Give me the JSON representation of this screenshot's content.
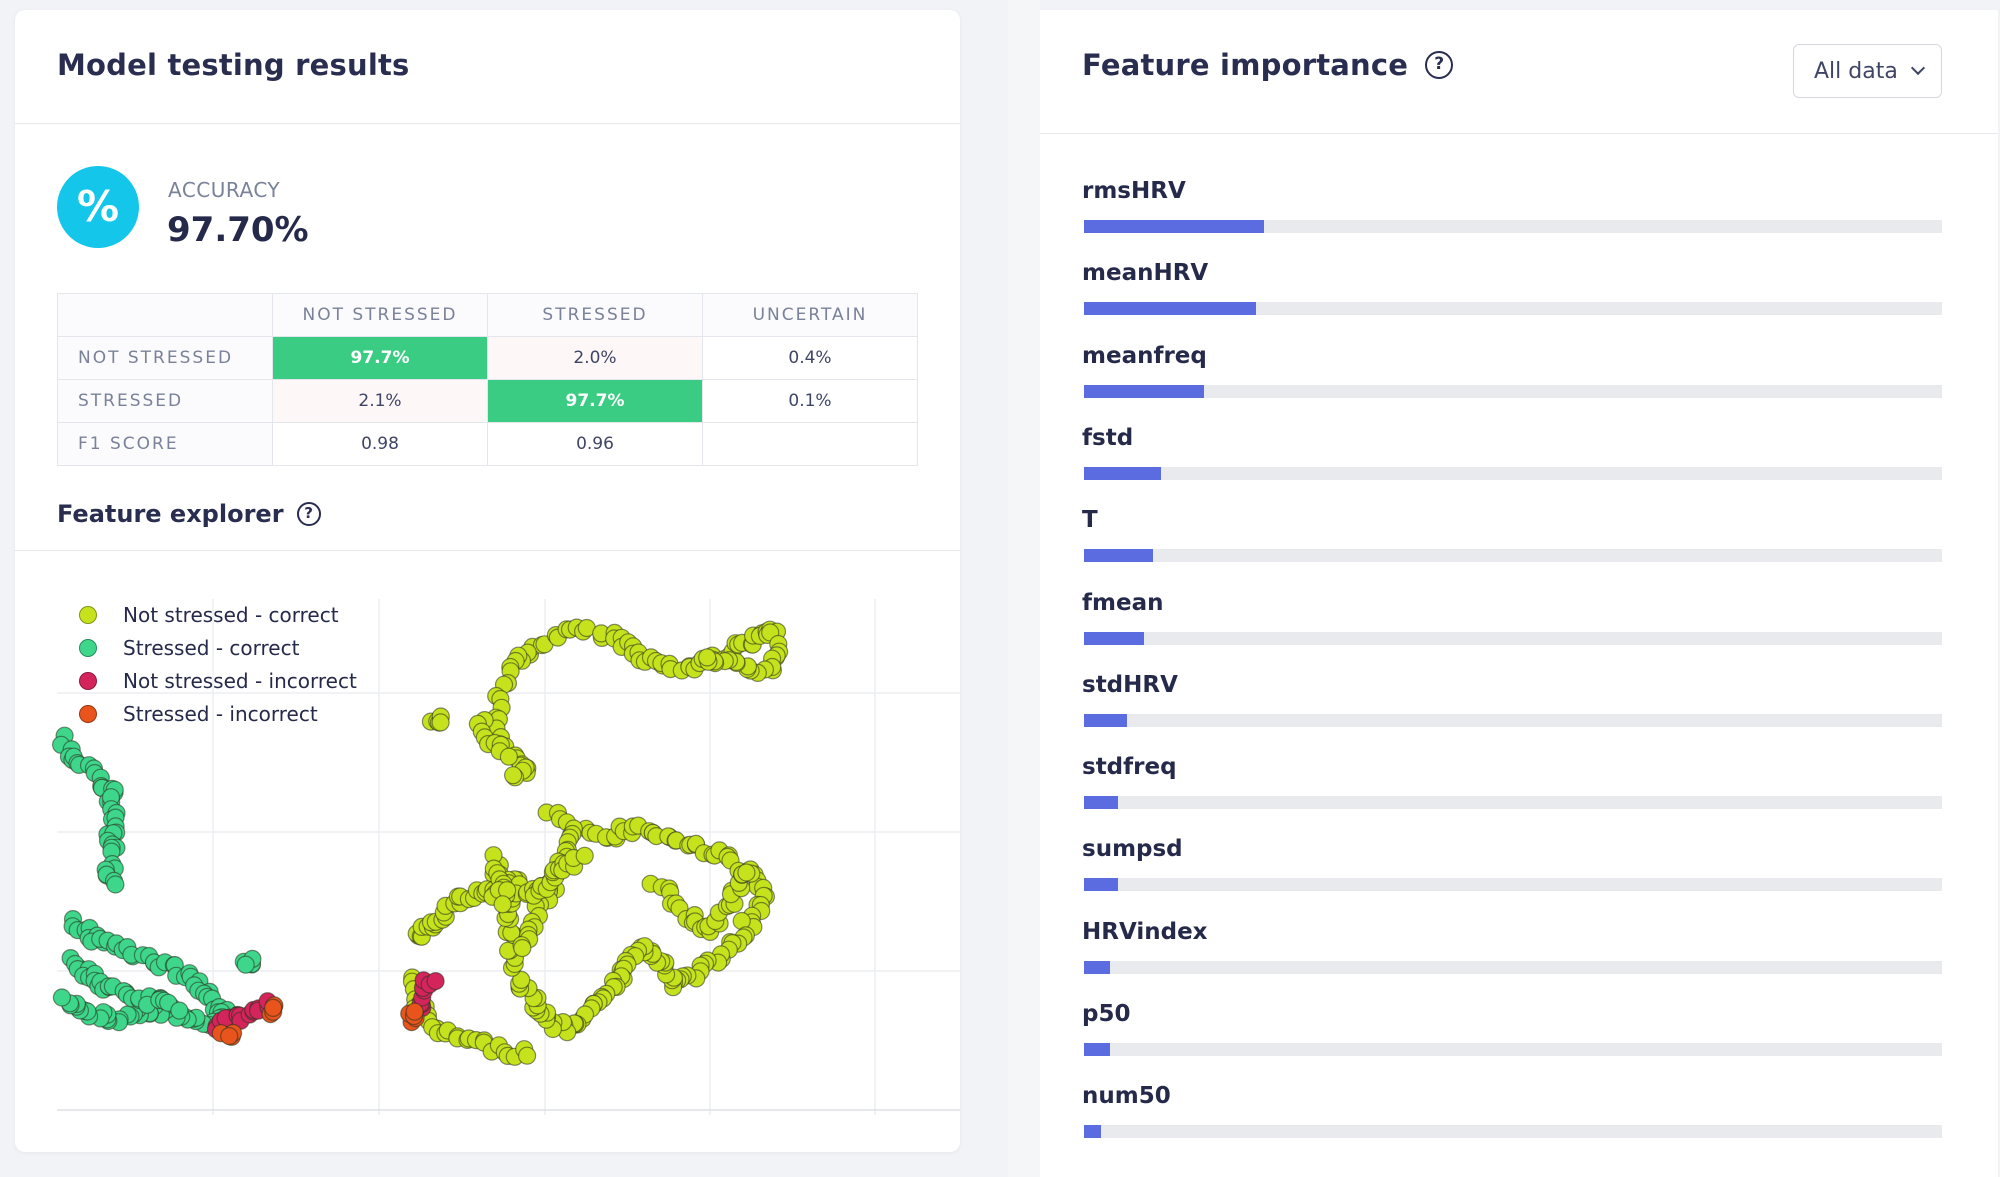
{
  "colors": {
    "accent": "#14c6ea",
    "matrix_highlight": "#3acc83",
    "bar": "#5b6ce0",
    "not_stressed_correct": "#c6e21c",
    "stressed_correct": "#3dd68a",
    "not_stressed_incorrect": "#d4245c",
    "stressed_incorrect": "#e8541c"
  },
  "left": {
    "title": "Model testing results",
    "accuracy": {
      "icon": "percent-icon",
      "icon_glyph": "%",
      "label": "ACCURACY",
      "value": "97.70%"
    },
    "matrix": {
      "columns": [
        "NOT STRESSED",
        "STRESSED",
        "UNCERTAIN"
      ],
      "rows": [
        {
          "label": "NOT STRESSED",
          "cells": [
            "97.7%",
            "2.0%",
            "0.4%"
          ]
        },
        {
          "label": "STRESSED",
          "cells": [
            "2.1%",
            "97.7%",
            "0.1%"
          ]
        },
        {
          "label": "F1 SCORE",
          "cells": [
            "0.98",
            "0.96",
            ""
          ]
        }
      ]
    },
    "explorer": {
      "title": "Feature explorer",
      "help_glyph": "?",
      "legend": [
        {
          "label": "Not stressed - correct",
          "color": "#c6e21c"
        },
        {
          "label": "Stressed - correct",
          "color": "#3dd68a"
        },
        {
          "label": "Not stressed - incorrect",
          "color": "#d4245c"
        },
        {
          "label": "Stressed - incorrect",
          "color": "#e8541c"
        }
      ]
    }
  },
  "right": {
    "title": "Feature importance",
    "help_glyph": "?",
    "select": {
      "value": "All data"
    },
    "features": [
      {
        "name": "rmsHRV",
        "importance": 0.21
      },
      {
        "name": "meanHRV",
        "importance": 0.2
      },
      {
        "name": "meanfreq",
        "importance": 0.14
      },
      {
        "name": "fstd",
        "importance": 0.09
      },
      {
        "name": "T",
        "importance": 0.08
      },
      {
        "name": "fmean",
        "importance": 0.07
      },
      {
        "name": "stdHRV",
        "importance": 0.05
      },
      {
        "name": "stdfreq",
        "importance": 0.04
      },
      {
        "name": "sumpsd",
        "importance": 0.04
      },
      {
        "name": "HRVindex",
        "importance": 0.03
      },
      {
        "name": "p50",
        "importance": 0.03
      },
      {
        "name": "num50",
        "importance": 0.02
      }
    ]
  }
}
